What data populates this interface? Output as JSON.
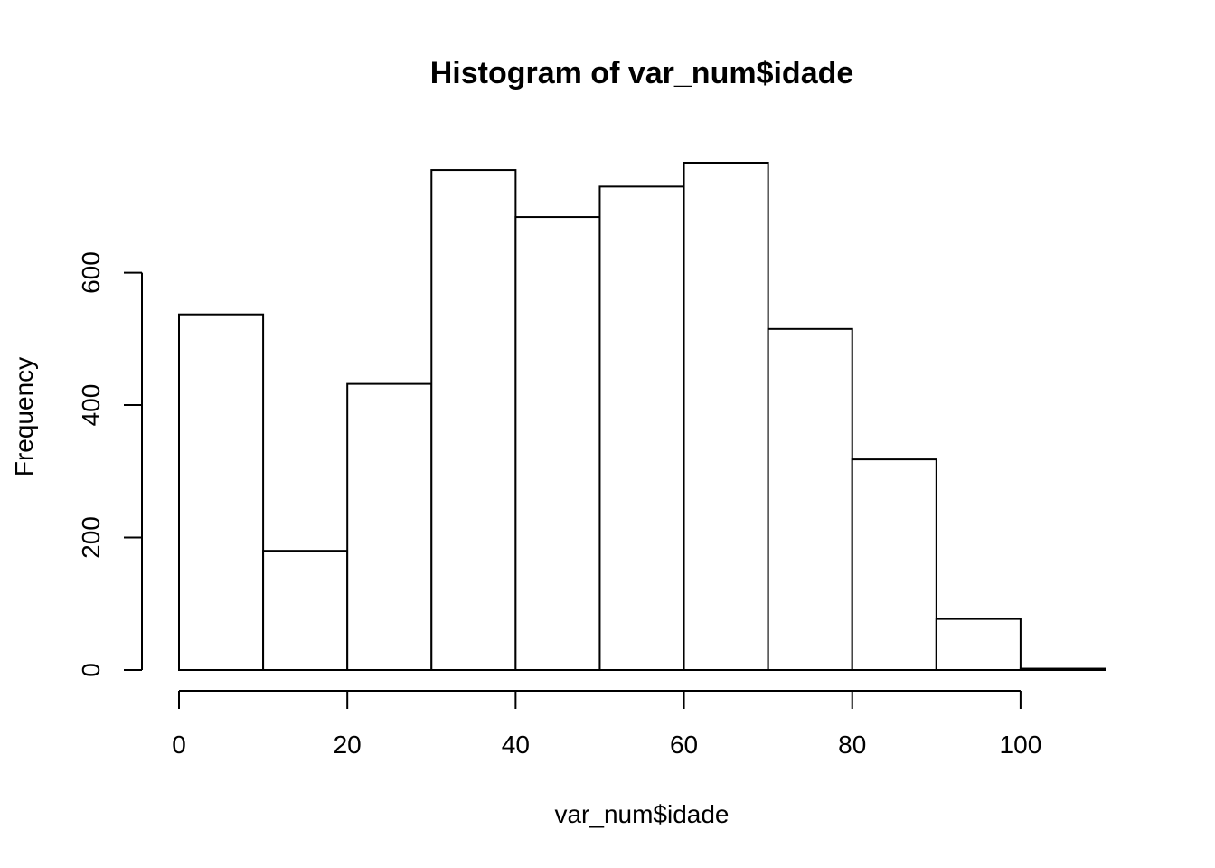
{
  "chart_data": {
    "type": "bar",
    "title": "Histogram of var_num$idade",
    "xlabel": "var_num$idade",
    "ylabel": "Frequency",
    "bins": [
      {
        "from": 0,
        "to": 10,
        "count": 537
      },
      {
        "from": 10,
        "to": 20,
        "count": 180
      },
      {
        "from": 20,
        "to": 30,
        "count": 432
      },
      {
        "from": 30,
        "to": 40,
        "count": 755
      },
      {
        "from": 40,
        "to": 50,
        "count": 684
      },
      {
        "from": 50,
        "to": 60,
        "count": 730
      },
      {
        "from": 60,
        "to": 70,
        "count": 766
      },
      {
        "from": 70,
        "to": 80,
        "count": 515
      },
      {
        "from": 80,
        "to": 90,
        "count": 318
      },
      {
        "from": 90,
        "to": 100,
        "count": 77
      },
      {
        "from": 100,
        "to": 110,
        "count": 2
      }
    ],
    "xlim": [
      0,
      110
    ],
    "ylim": [
      0,
      766
    ],
    "xticks": [
      0,
      20,
      40,
      60,
      80,
      100
    ],
    "yticks": [
      0,
      200,
      400,
      600
    ],
    "grid": false,
    "colors": {
      "bar_fill": "#ffffff",
      "bar_stroke": "#000000"
    }
  }
}
